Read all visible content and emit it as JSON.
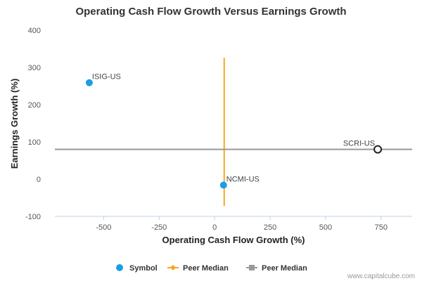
{
  "chart_data": {
    "type": "scatter",
    "title": "Operating Cash Flow Growth Versus Earnings Growth",
    "xlabel": "Operating Cash Flow Growth (%)",
    "ylabel": "Earnings Growth (%)",
    "xlim": [
      -720,
      890
    ],
    "ylim": [
      -100,
      400
    ],
    "x_ticks": [
      "-500",
      "-250",
      "0",
      "250",
      "500",
      "750"
    ],
    "x_tick_values": [
      -500,
      -250,
      0,
      250,
      500,
      750
    ],
    "y_ticks": [
      "400",
      "300",
      "200",
      "100",
      "0",
      "-100"
    ],
    "y_tick_values": [
      400,
      300,
      200,
      100,
      0,
      -100
    ],
    "points": [
      {
        "label": "ISIG-US",
        "x": -565,
        "y": 259,
        "style": "filled",
        "color": "#1a9ee8"
      },
      {
        "label": "NCMI-US",
        "x": 40,
        "y": -16,
        "style": "filled",
        "color": "#1a9ee8"
      },
      {
        "label": "SCRI-US",
        "x": 735,
        "y": 80,
        "style": "hollow",
        "color": "#222222"
      }
    ],
    "peer_median_x": {
      "value": 43,
      "y_from": -72,
      "y_to": 326,
      "color": "#f5a623"
    },
    "peer_median_y": {
      "value": 80,
      "color": "#999999"
    },
    "legend": {
      "position": "bottom",
      "items": [
        {
          "label": "Symbol",
          "marker": "circle",
          "color": "#1a9ee8"
        },
        {
          "label": "Peer Median",
          "marker": "diamond-line",
          "color": "#f5a623"
        },
        {
          "label": "Peer Median",
          "marker": "square-line",
          "color": "#999999"
        }
      ]
    },
    "credit": "www.capitalcube.com"
  }
}
